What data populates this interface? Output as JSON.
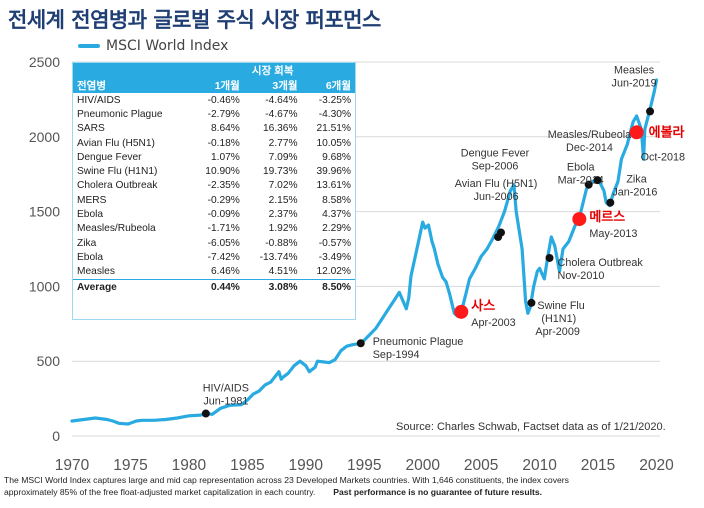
{
  "title": "전세계 전염병과 글로벌 주식 시장 퍼포먼스",
  "legend_label": "MSCI World Index",
  "colors": {
    "series": "#29abe2",
    "title": "#1f3e73",
    "marker": "#111111",
    "highlight": "#ff1a1a"
  },
  "table": {
    "header_group": "시장 회복",
    "columns": [
      "전염병",
      "1개월",
      "3개월",
      "6개월"
    ],
    "rows": [
      [
        "HIV/AIDS",
        "-0.46%",
        "-4.64%",
        "-3.25%"
      ],
      [
        "Pneumonic Plague",
        "-2.79%",
        "-4.67%",
        "-4.30%"
      ],
      [
        "SARS",
        "8.64%",
        "16.36%",
        "21.51%"
      ],
      [
        "Avian Flu (H5N1)",
        "-0.18%",
        "2.77%",
        "10.05%"
      ],
      [
        "Dengue Fever",
        "1.07%",
        "7.09%",
        "9.68%"
      ],
      [
        "Swine Flu (H1N1)",
        "10.90%",
        "19.73%",
        "39.96%"
      ],
      [
        "Cholera Outbreak",
        "-2.35%",
        "7.02%",
        "13.61%"
      ],
      [
        "MERS",
        "-0.29%",
        "2.15%",
        "8.58%"
      ],
      [
        "Ebola",
        "-0.09%",
        "2.37%",
        "4.37%"
      ],
      [
        "Measles/Rubeola",
        "-1.71%",
        "1.92%",
        "2.29%"
      ],
      [
        "Zika",
        "-6.05%",
        "-0.88%",
        "-0.57%"
      ],
      [
        "Ebola",
        "-7.42%",
        "-13.74%",
        "-3.49%"
      ],
      [
        "Measles",
        "6.46%",
        "4.51%",
        "12.02%"
      ],
      [
        "Average",
        "0.44%",
        "3.08%",
        "8.50%"
      ]
    ]
  },
  "source": "Source: Charles Schwab, Factset data as of 1/21/2020.",
  "footnote": {
    "line1": "The MSCI World Index captures large and mid cap representation across 23 Developed Markets countries. With 1,646 constituents, the index covers",
    "line2": "approximately 85% of the free float-adjusted market capitalization in each country.",
    "disclaimer": "Past performance is no guarantee of future results."
  },
  "chart_data": {
    "type": "line",
    "title": "전세계 전염병과 글로벌 주식 시장 퍼포먼스",
    "xlabel": "",
    "ylabel": "",
    "xlim": [
      1970,
      2020.3
    ],
    "ylim": [
      0,
      2500
    ],
    "x_ticks": [
      1970,
      1975,
      1980,
      1985,
      1990,
      1995,
      2000,
      2005,
      2010,
      2015,
      2020
    ],
    "y_ticks": [
      0,
      500,
      1000,
      1500,
      2000,
      2500
    ],
    "grid": true,
    "series": [
      {
        "name": "MSCI World Index",
        "x": [
          1970,
          1971,
          1972,
          1973,
          1973.5,
          1974,
          1974.8,
          1975.5,
          1976,
          1977,
          1978,
          1979,
          1980,
          1981,
          1981.5,
          1982,
          1982.7,
          1983.5,
          1984.5,
          1985,
          1985.5,
          1986,
          1986.5,
          1987,
          1987.7,
          1987.9,
          1988,
          1988.5,
          1989,
          1989.5,
          1990,
          1990.3,
          1990.8,
          1991,
          1991.5,
          1992,
          1992.5,
          1993,
          1993.5,
          1994,
          1994.8,
          1995,
          1995.5,
          1996,
          1996.5,
          1997,
          1997.5,
          1998,
          1998.6,
          1998.8,
          1999,
          1999.5,
          2000,
          2000.2,
          2000.5,
          2000.8,
          2001,
          2001.3,
          2001.7,
          2002,
          2002.3,
          2002.7,
          2003,
          2003.3,
          2003.7,
          2004,
          2004.5,
          2005,
          2005.5,
          2006,
          2006.5,
          2007,
          2007.5,
          2007.8,
          2008,
          2008.5,
          2008.8,
          2009,
          2009.2,
          2009.5,
          2009.8,
          2010,
          2010.4,
          2010.7,
          2011,
          2011.3,
          2011.7,
          2012,
          2012.5,
          2013,
          2013.5,
          2014,
          2014.5,
          2015,
          2015.5,
          2015.7,
          2016,
          2016.3,
          2016.7,
          2017,
          2017.5,
          2018,
          2018.3,
          2018.7,
          2018.9,
          2019,
          2019.5,
          2019.8,
          2020
        ],
        "y": [
          100,
          110,
          120,
          110,
          100,
          85,
          80,
          100,
          105,
          105,
          110,
          120,
          135,
          140,
          150,
          145,
          185,
          205,
          210,
          240,
          280,
          300,
          340,
          360,
          430,
          380,
          390,
          420,
          470,
          500,
          470,
          430,
          460,
          500,
          495,
          490,
          510,
          570,
          600,
          610,
          620,
          640,
          680,
          720,
          780,
          840,
          900,
          960,
          850,
          920,
          1070,
          1250,
          1430,
          1390,
          1410,
          1300,
          1250,
          1150,
          1060,
          1030,
          950,
          820,
          800,
          830,
          950,
          1050,
          1120,
          1200,
          1250,
          1320,
          1400,
          1500,
          1640,
          1680,
          1500,
          1250,
          900,
          820,
          860,
          1000,
          1100,
          1120,
          1050,
          1200,
          1330,
          1270,
          1100,
          1250,
          1300,
          1400,
          1490,
          1650,
          1700,
          1720,
          1640,
          1560,
          1540,
          1620,
          1700,
          1850,
          1950,
          2100,
          2140,
          2050,
          1850,
          2050,
          2200,
          2300,
          2380
        ]
      }
    ],
    "events": [
      {
        "label": "HIV/AIDS",
        "date": "Jun-1981",
        "x": 1981.45,
        "y": 150,
        "highlight": false
      },
      {
        "label": "Pneumonic Plague",
        "date": "Sep-1994",
        "x": 1994.7,
        "y": 620,
        "highlight": false
      },
      {
        "label": "사스",
        "date": "Apr-2003",
        "x": 2003.3,
        "y": 830,
        "highlight": true
      },
      {
        "label": "Avian Flu (H5N1)",
        "date": "Jun-2006",
        "x": 2006.45,
        "y": 1330,
        "highlight": false
      },
      {
        "label": "Dengue Fever",
        "date": "Sep-2006",
        "x": 2006.7,
        "y": 1360,
        "highlight": false
      },
      {
        "label": "Swine Flu (H1N1)",
        "date": "Apr-2009",
        "x": 2009.3,
        "y": 890,
        "highlight": false
      },
      {
        "label": "Cholera Outbreak",
        "date": "Nov-2010",
        "x": 2010.85,
        "y": 1190,
        "highlight": false
      },
      {
        "label": "메르스",
        "date": "May-2013",
        "x": 2013.4,
        "y": 1450,
        "highlight": true
      },
      {
        "label": "Ebola",
        "date": "Mar-2014",
        "x": 2014.2,
        "y": 1680,
        "highlight": false
      },
      {
        "label": "Measles/Rubeola",
        "date": "Dec-2014",
        "x": 2014.95,
        "y": 1710,
        "highlight": false
      },
      {
        "label": "Zika",
        "date": "Jan-2016",
        "x": 2016.05,
        "y": 1560,
        "highlight": false
      },
      {
        "label": "에볼라",
        "date": "Oct-2018",
        "x": 2018.3,
        "y": 2030,
        "highlight": true
      },
      {
        "label": "Measles",
        "date": "Jun-2019",
        "x": 2019.45,
        "y": 2170,
        "highlight": false
      }
    ]
  }
}
